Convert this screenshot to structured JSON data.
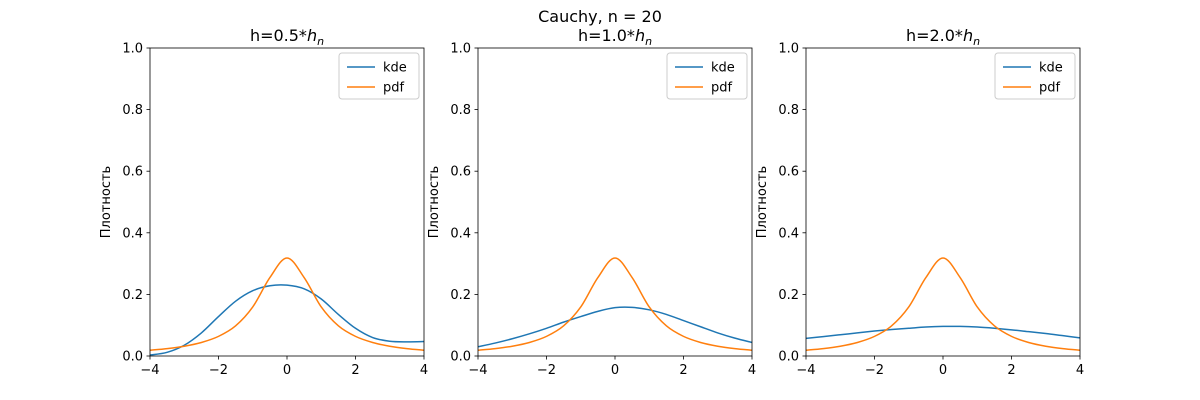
{
  "figure": {
    "suptitle": "Cauchy, n = 20"
  },
  "chart_data": [
    {
      "type": "line",
      "title_prefix": "h=0.5*",
      "title_symbol": "h",
      "title_subscript": "n",
      "ylabel": "Плотность",
      "xlim": [
        -4,
        4
      ],
      "ylim": [
        0,
        1
      ],
      "xticks": [
        -4,
        -2,
        0,
        2,
        4
      ],
      "xtick_labels": [
        "−4",
        "−2",
        "0",
        "2",
        "4"
      ],
      "yticks": [
        0,
        0.2,
        0.4,
        0.6,
        0.8,
        1.0
      ],
      "ytick_labels": [
        "0.0",
        "0.2",
        "0.4",
        "0.6",
        "0.8",
        "1.0"
      ],
      "legend": "top-right",
      "x": [
        -4,
        -3.5,
        -3,
        -2.5,
        -2,
        -1.5,
        -1,
        -0.5,
        0,
        0.5,
        1,
        1.5,
        2,
        2.5,
        3,
        3.5,
        4
      ],
      "series": [
        {
          "name": "kde",
          "color": "#1f77b4",
          "values": [
            0.003,
            0.012,
            0.035,
            0.075,
            0.128,
            0.178,
            0.212,
            0.228,
            0.23,
            0.218,
            0.185,
            0.135,
            0.09,
            0.06,
            0.048,
            0.046,
            0.047
          ]
        },
        {
          "name": "pdf",
          "color": "#ff7f0e",
          "values": [
            0.0187,
            0.0241,
            0.0318,
            0.0439,
            0.0637,
            0.0979,
            0.1592,
            0.2546,
            0.3183,
            0.2546,
            0.1592,
            0.0979,
            0.0637,
            0.0439,
            0.0318,
            0.0241,
            0.0187
          ]
        }
      ]
    },
    {
      "type": "line",
      "title_prefix": "h=1.0*",
      "title_symbol": "h",
      "title_subscript": "n",
      "ylabel": "Плотность",
      "xlim": [
        -4,
        4
      ],
      "ylim": [
        0,
        1
      ],
      "xticks": [
        -4,
        -2,
        0,
        2,
        4
      ],
      "xtick_labels": [
        "−4",
        "−2",
        "0",
        "2",
        "4"
      ],
      "yticks": [
        0,
        0.2,
        0.4,
        0.6,
        0.8,
        1.0
      ],
      "ytick_labels": [
        "0.0",
        "0.2",
        "0.4",
        "0.6",
        "0.8",
        "1.0"
      ],
      "legend": "top-right",
      "x": [
        -4,
        -3.5,
        -3,
        -2.5,
        -2,
        -1.5,
        -1,
        -0.5,
        0,
        0.5,
        1,
        1.5,
        2,
        2.5,
        3,
        3.5,
        4
      ],
      "series": [
        {
          "name": "kde",
          "color": "#1f77b4",
          "values": [
            0.03,
            0.042,
            0.056,
            0.072,
            0.09,
            0.11,
            0.128,
            0.145,
            0.157,
            0.158,
            0.15,
            0.135,
            0.115,
            0.095,
            0.075,
            0.058,
            0.044
          ]
        },
        {
          "name": "pdf",
          "color": "#ff7f0e",
          "values": [
            0.0187,
            0.0241,
            0.0318,
            0.0439,
            0.0637,
            0.0979,
            0.1592,
            0.2546,
            0.3183,
            0.2546,
            0.1592,
            0.0979,
            0.0637,
            0.0439,
            0.0318,
            0.0241,
            0.0187
          ]
        }
      ]
    },
    {
      "type": "line",
      "title_prefix": "h=2.0*",
      "title_symbol": "h",
      "title_subscript": "n",
      "ylabel": "Плотность",
      "xlim": [
        -4,
        4
      ],
      "ylim": [
        0,
        1
      ],
      "xticks": [
        -4,
        -2,
        0,
        2,
        4
      ],
      "xtick_labels": [
        "−4",
        "−2",
        "0",
        "2",
        "4"
      ],
      "yticks": [
        0,
        0.2,
        0.4,
        0.6,
        0.8,
        1.0
      ],
      "ytick_labels": [
        "0.0",
        "0.2",
        "0.4",
        "0.6",
        "0.8",
        "1.0"
      ],
      "legend": "top-right",
      "x": [
        -4,
        -3.5,
        -3,
        -2.5,
        -2,
        -1.5,
        -1,
        -0.5,
        0,
        0.5,
        1,
        1.5,
        2,
        2.5,
        3,
        3.5,
        4
      ],
      "series": [
        {
          "name": "kde",
          "color": "#1f77b4",
          "values": [
            0.057,
            0.063,
            0.069,
            0.075,
            0.081,
            0.086,
            0.09,
            0.094,
            0.096,
            0.096,
            0.094,
            0.09,
            0.085,
            0.079,
            0.073,
            0.066,
            0.059
          ]
        },
        {
          "name": "pdf",
          "color": "#ff7f0e",
          "values": [
            0.0187,
            0.0241,
            0.0318,
            0.0439,
            0.0637,
            0.0979,
            0.1592,
            0.2546,
            0.3183,
            0.2546,
            0.1592,
            0.0979,
            0.0637,
            0.0439,
            0.0318,
            0.0241,
            0.0187
          ]
        }
      ]
    }
  ]
}
